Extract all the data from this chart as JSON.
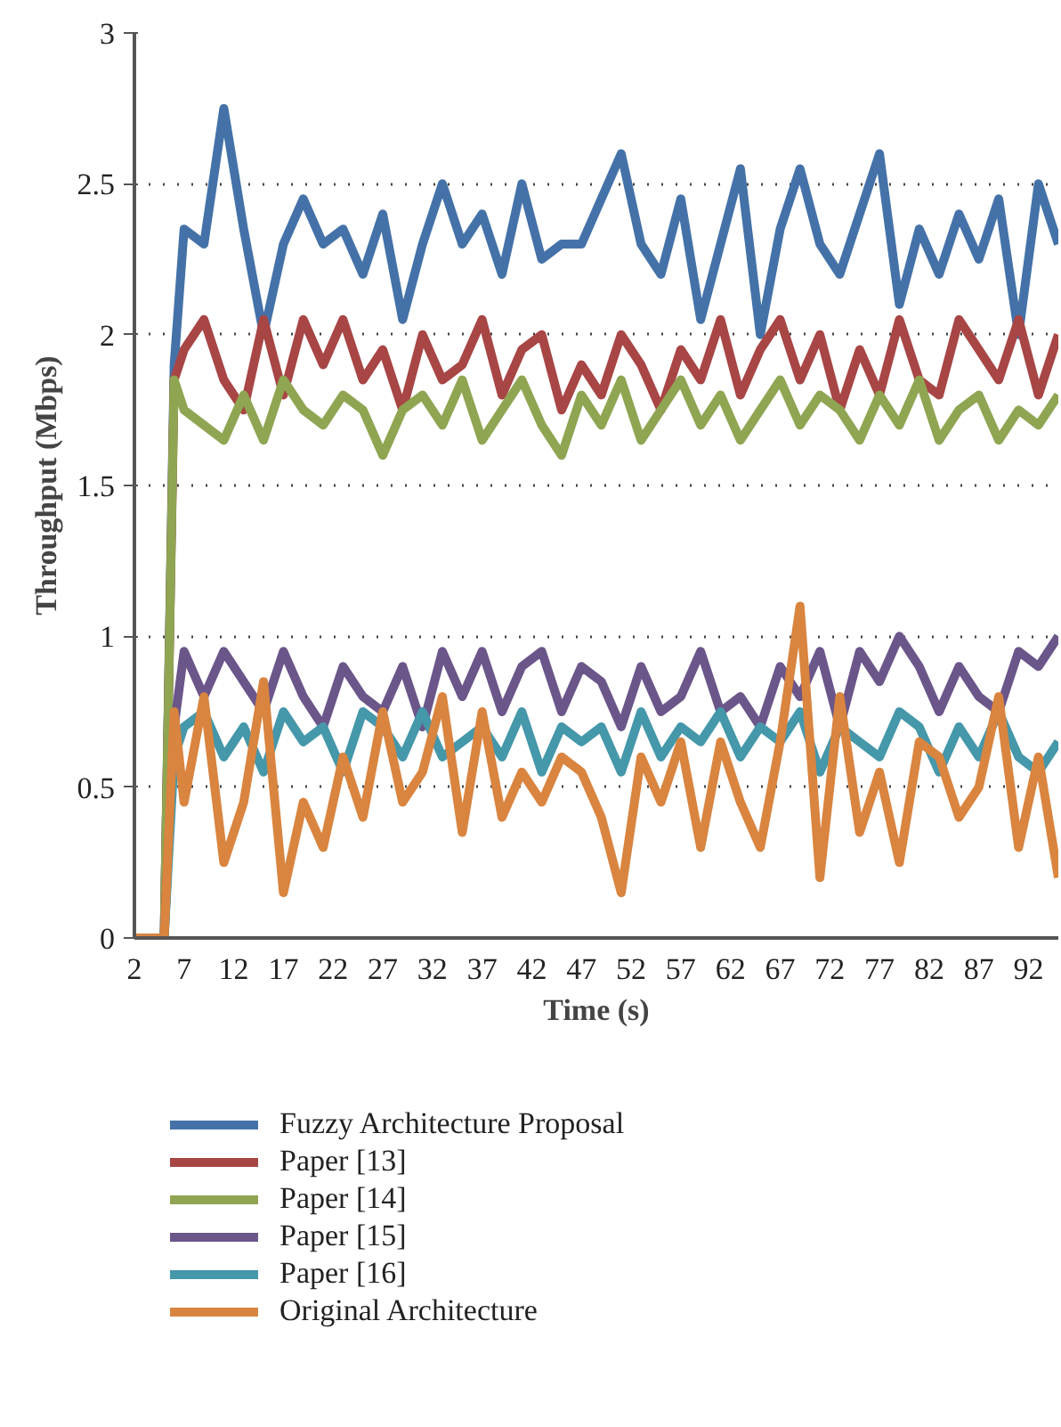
{
  "chart_data": {
    "type": "line",
    "xlabel": "Time (s)",
    "ylabel": "Throughput (Mbps)",
    "x": [
      2,
      3,
      4,
      5,
      6,
      7,
      9,
      11,
      13,
      15,
      17,
      19,
      21,
      23,
      25,
      27,
      29,
      31,
      33,
      35,
      37,
      39,
      41,
      43,
      45,
      47,
      49,
      51,
      53,
      55,
      57,
      59,
      61,
      63,
      65,
      67,
      69,
      71,
      73,
      75,
      77,
      79,
      81,
      83,
      85,
      87,
      89,
      91,
      93,
      95
    ],
    "xlim": [
      2,
      95
    ],
    "xticks": [
      2,
      7,
      12,
      17,
      22,
      27,
      32,
      37,
      42,
      47,
      52,
      57,
      62,
      67,
      72,
      77,
      82,
      87,
      92
    ],
    "ylim": [
      0,
      3
    ],
    "yticks": [
      0,
      0.5,
      1,
      1.5,
      2,
      2.5,
      3
    ],
    "grid": "y",
    "legend": "bottom",
    "line_style": "solid",
    "marker": "none",
    "series": [
      {
        "name": "Fuzzy Architecture Proposal",
        "color": "#4472a8",
        "x": [
          5,
          6,
          7,
          9,
          11,
          13,
          15,
          17,
          19,
          21,
          23,
          25,
          27,
          29,
          31,
          33,
          35,
          37,
          39,
          41,
          43,
          45,
          47,
          49,
          51,
          53,
          55,
          57,
          59,
          61,
          63,
          65,
          67,
          69,
          71,
          73,
          75,
          77,
          79,
          81,
          83,
          85,
          87,
          89,
          91,
          93,
          95
        ],
        "values": [
          0,
          1.9,
          2.35,
          2.3,
          2.75,
          2.35,
          2.0,
          2.3,
          2.45,
          2.3,
          2.35,
          2.2,
          2.4,
          2.05,
          2.3,
          2.5,
          2.3,
          2.4,
          2.2,
          2.5,
          2.25,
          2.3,
          2.3,
          2.45,
          2.6,
          2.3,
          2.2,
          2.45,
          2.05,
          2.3,
          2.55,
          2.0,
          2.35,
          2.55,
          2.3,
          2.2,
          2.4,
          2.6,
          2.1,
          2.35,
          2.2,
          2.4,
          2.25,
          2.45,
          2.0,
          2.5,
          2.3
        ]
      },
      {
        "name": "Paper [13]",
        "color": "#a84545",
        "x": [
          5,
          6,
          7,
          9,
          11,
          13,
          15,
          17,
          19,
          21,
          23,
          25,
          27,
          29,
          31,
          33,
          35,
          37,
          39,
          41,
          43,
          45,
          47,
          49,
          51,
          53,
          55,
          57,
          59,
          61,
          63,
          65,
          67,
          69,
          71,
          73,
          75,
          77,
          79,
          81,
          83,
          85,
          87,
          89,
          91,
          93,
          95
        ],
        "values": [
          0,
          1.85,
          1.95,
          2.05,
          1.85,
          1.75,
          2.05,
          1.8,
          2.05,
          1.9,
          2.05,
          1.85,
          1.95,
          1.75,
          2.0,
          1.85,
          1.9,
          2.05,
          1.8,
          1.95,
          2.0,
          1.75,
          1.9,
          1.8,
          2.0,
          1.9,
          1.75,
          1.95,
          1.85,
          2.05,
          1.8,
          1.95,
          2.05,
          1.85,
          2.0,
          1.75,
          1.95,
          1.8,
          2.05,
          1.85,
          1.8,
          2.05,
          1.95,
          1.85,
          2.05,
          1.8,
          2.0
        ]
      },
      {
        "name": "Paper [14]",
        "color": "#8fa552",
        "x": [
          5,
          6,
          7,
          9,
          11,
          13,
          15,
          17,
          19,
          21,
          23,
          25,
          27,
          29,
          31,
          33,
          35,
          37,
          39,
          41,
          43,
          45,
          47,
          49,
          51,
          53,
          55,
          57,
          59,
          61,
          63,
          65,
          67,
          69,
          71,
          73,
          75,
          77,
          79,
          81,
          83,
          85,
          87,
          89,
          91,
          93,
          95
        ],
        "values": [
          0,
          1.85,
          1.75,
          1.7,
          1.65,
          1.8,
          1.65,
          1.85,
          1.75,
          1.7,
          1.8,
          1.75,
          1.6,
          1.75,
          1.8,
          1.7,
          1.85,
          1.65,
          1.75,
          1.85,
          1.7,
          1.6,
          1.8,
          1.7,
          1.85,
          1.65,
          1.75,
          1.85,
          1.7,
          1.8,
          1.65,
          1.75,
          1.85,
          1.7,
          1.8,
          1.75,
          1.65,
          1.8,
          1.7,
          1.85,
          1.65,
          1.75,
          1.8,
          1.65,
          1.75,
          1.7,
          1.8
        ]
      },
      {
        "name": "Paper [15]",
        "color": "#6b568a",
        "x": [
          5,
          6,
          7,
          9,
          11,
          13,
          15,
          17,
          19,
          21,
          23,
          25,
          27,
          29,
          31,
          33,
          35,
          37,
          39,
          41,
          43,
          45,
          47,
          49,
          51,
          53,
          55,
          57,
          59,
          61,
          63,
          65,
          67,
          69,
          71,
          73,
          75,
          77,
          79,
          81,
          83,
          85,
          87,
          89,
          91,
          93,
          95
        ],
        "values": [
          0,
          0.7,
          0.95,
          0.8,
          0.95,
          0.85,
          0.75,
          0.95,
          0.8,
          0.7,
          0.9,
          0.8,
          0.75,
          0.9,
          0.7,
          0.95,
          0.8,
          0.95,
          0.75,
          0.9,
          0.95,
          0.75,
          0.9,
          0.85,
          0.7,
          0.9,
          0.75,
          0.8,
          0.95,
          0.75,
          0.8,
          0.7,
          0.9,
          0.8,
          0.95,
          0.7,
          0.95,
          0.85,
          1.0,
          0.9,
          0.75,
          0.9,
          0.8,
          0.75,
          0.95,
          0.9,
          1.0
        ]
      },
      {
        "name": "Paper [16]",
        "color": "#4597aa",
        "x": [
          5,
          6,
          7,
          9,
          11,
          13,
          15,
          17,
          19,
          21,
          23,
          25,
          27,
          29,
          31,
          33,
          35,
          37,
          39,
          41,
          43,
          45,
          47,
          49,
          51,
          53,
          55,
          57,
          59,
          61,
          63,
          65,
          67,
          69,
          71,
          73,
          75,
          77,
          79,
          81,
          83,
          85,
          87,
          89,
          91,
          93,
          95
        ],
        "values": [
          0,
          0.6,
          0.7,
          0.75,
          0.6,
          0.7,
          0.55,
          0.75,
          0.65,
          0.7,
          0.55,
          0.75,
          0.7,
          0.6,
          0.75,
          0.6,
          0.65,
          0.7,
          0.6,
          0.75,
          0.55,
          0.7,
          0.65,
          0.7,
          0.55,
          0.75,
          0.6,
          0.7,
          0.65,
          0.75,
          0.6,
          0.7,
          0.65,
          0.75,
          0.55,
          0.7,
          0.65,
          0.6,
          0.75,
          0.7,
          0.55,
          0.7,
          0.6,
          0.75,
          0.6,
          0.55,
          0.65
        ]
      },
      {
        "name": "Original Architecture",
        "color": "#d9843f",
        "values": [
          0,
          0,
          0,
          0,
          0.75,
          0.45,
          0.8,
          0.25,
          0.45,
          0.85,
          0.15,
          0.45,
          0.3,
          0.6,
          0.4,
          0.75,
          0.45,
          0.55,
          0.8,
          0.35,
          0.75,
          0.4,
          0.55,
          0.45,
          0.6,
          0.55,
          0.4,
          0.15,
          0.6,
          0.45,
          0.65,
          0.3,
          0.65,
          0.45,
          0.3,
          0.65,
          1.1,
          0.2,
          0.8,
          0.35,
          0.55,
          0.25,
          0.65,
          0.6,
          0.4,
          0.5,
          0.8,
          0.3,
          0.6,
          0.2
        ]
      }
    ]
  }
}
